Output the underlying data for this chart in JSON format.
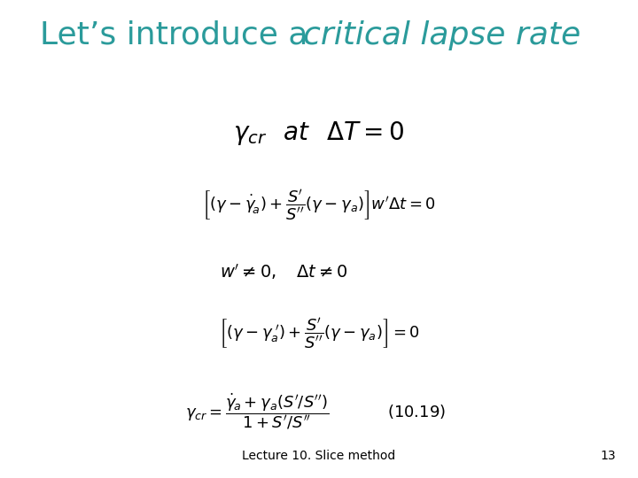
{
  "title_normal": "Let’s introduce a ",
  "title_italic": "critical lapse rate",
  "title_color": "#2B9B9B",
  "title_fontsize": 26,
  "background_color": "#ffffff",
  "footer_text": "Lecture 10. Slice method",
  "footer_page": "13",
  "footer_fontsize": 10,
  "eq_fontsize": 13,
  "eq3_fontsize": 13
}
